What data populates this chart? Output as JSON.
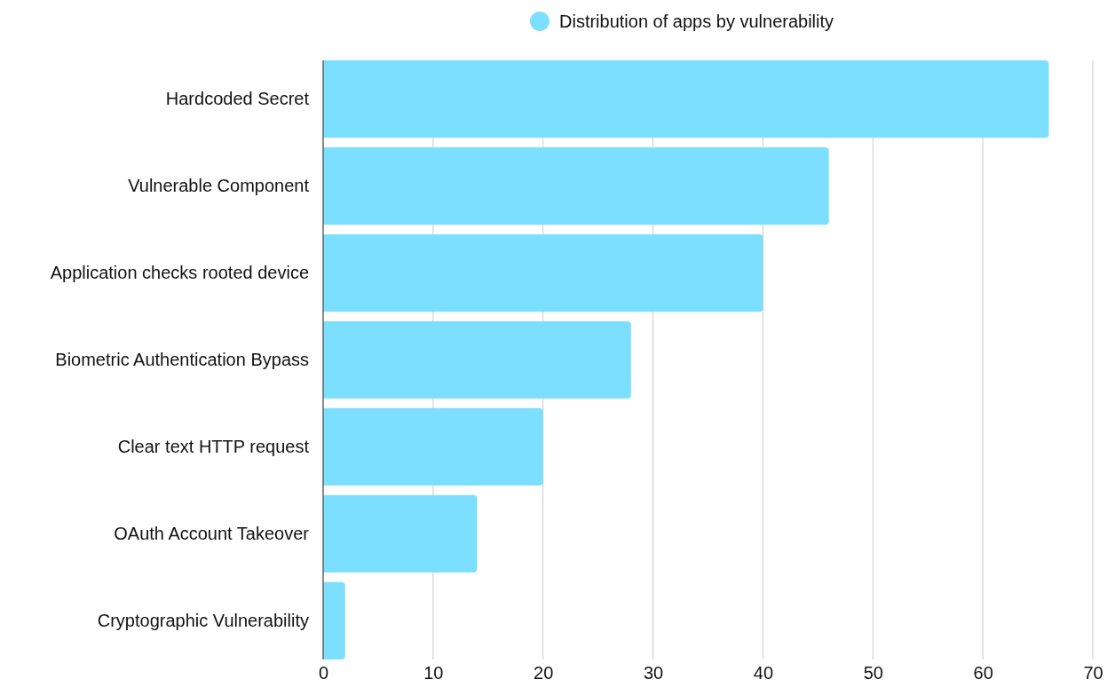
{
  "chart_data": {
    "type": "bar",
    "orientation": "horizontal",
    "categories": [
      "Hardcoded Secret",
      "Vulnerable Component",
      "Application checks rooted device",
      "Biometric Authentication Bypass",
      "Clear text HTTP request",
      "OAuth Account Takeover",
      "Cryptographic Vulnerability"
    ],
    "series": [
      {
        "name": "Distribution of apps by vulnerability",
        "color": "#7ddffe",
        "values": [
          66,
          46,
          40,
          28,
          20,
          14,
          2
        ]
      }
    ],
    "xlim": [
      0,
      70
    ],
    "xticks": [
      0,
      10,
      20,
      30,
      40,
      50,
      60,
      70
    ],
    "grid": "x",
    "legend": "top"
  }
}
